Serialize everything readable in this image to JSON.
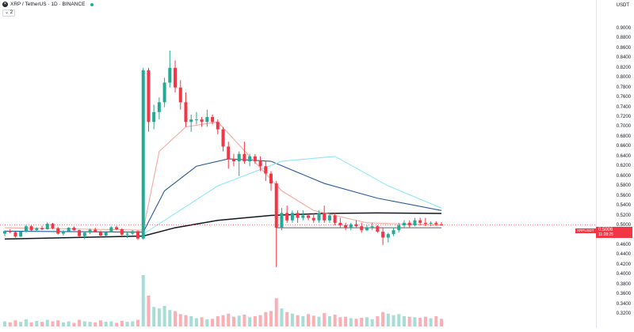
{
  "legend": {
    "symbol_icon": "xrp-logo-icon",
    "title": "XRP / TetherUS · 1D · BINANCE",
    "status_color": "#22ab94",
    "indicators_toggle": "⌄ 2"
  },
  "currency": "USDT",
  "price_axis": {
    "ticks": [
      "0.9000",
      "0.8800",
      "0.8600",
      "0.8400",
      "0.8200",
      "0.8000",
      "0.7800",
      "0.7600",
      "0.7400",
      "0.7200",
      "0.7000",
      "0.6800",
      "0.6600",
      "0.6400",
      "0.6200",
      "0.6000",
      "0.5800",
      "0.5600",
      "0.5400",
      "0.5200",
      "0.5000",
      "0.4800",
      "0.4600",
      "0.4400",
      "0.4200",
      "0.4000",
      "0.3800",
      "0.3600",
      "0.3400",
      "0.3200"
    ]
  },
  "last_price": {
    "symbol": "XRPUSDT",
    "value": "0.5006",
    "countdown": "11:28:25",
    "color": "#f23645"
  },
  "colors": {
    "up": "#22ab94",
    "down": "#f23645",
    "ema_fast": "#f7a8a0",
    "ema_mid": "#2a5a9e",
    "sma_slow": "#8ee7f7",
    "sma_long": "#131722"
  },
  "chart_data": {
    "type": "candlestick",
    "symbol": "XRP / TetherUS",
    "interval": "1D",
    "exchange": "BINANCE",
    "ylim": [
      0.31,
      0.91
    ],
    "candles": [
      [
        0.483,
        0.49,
        0.478,
        0.488
      ],
      [
        0.488,
        0.492,
        0.484,
        0.486
      ],
      [
        0.486,
        0.488,
        0.475,
        0.477
      ],
      [
        0.477,
        0.489,
        0.476,
        0.487
      ],
      [
        0.487,
        0.501,
        0.485,
        0.498
      ],
      [
        0.498,
        0.5,
        0.488,
        0.49
      ],
      [
        0.49,
        0.496,
        0.487,
        0.494
      ],
      [
        0.494,
        0.499,
        0.49,
        0.492
      ],
      [
        0.492,
        0.506,
        0.491,
        0.503
      ],
      [
        0.503,
        0.505,
        0.492,
        0.494
      ],
      [
        0.494,
        0.497,
        0.481,
        0.483
      ],
      [
        0.483,
        0.49,
        0.479,
        0.488
      ],
      [
        0.488,
        0.496,
        0.487,
        0.495
      ],
      [
        0.495,
        0.498,
        0.489,
        0.49
      ],
      [
        0.49,
        0.491,
        0.476,
        0.478
      ],
      [
        0.478,
        0.487,
        0.472,
        0.485
      ],
      [
        0.485,
        0.493,
        0.482,
        0.491
      ],
      [
        0.491,
        0.495,
        0.486,
        0.487
      ],
      [
        0.487,
        0.489,
        0.476,
        0.479
      ],
      [
        0.479,
        0.488,
        0.477,
        0.486
      ],
      [
        0.486,
        0.498,
        0.485,
        0.496
      ],
      [
        0.496,
        0.499,
        0.49,
        0.492
      ],
      [
        0.492,
        0.494,
        0.479,
        0.481
      ],
      [
        0.481,
        0.486,
        0.474,
        0.483
      ],
      [
        0.483,
        0.49,
        0.48,
        0.488
      ],
      [
        0.488,
        0.489,
        0.47,
        0.473
      ],
      [
        0.473,
        0.82,
        0.471,
        0.815
      ],
      [
        0.815,
        0.82,
        0.69,
        0.71
      ],
      [
        0.71,
        0.745,
        0.695,
        0.73
      ],
      [
        0.73,
        0.76,
        0.715,
        0.75
      ],
      [
        0.75,
        0.8,
        0.74,
        0.79
      ],
      [
        0.79,
        0.855,
        0.78,
        0.82
      ],
      [
        0.82,
        0.835,
        0.77,
        0.78
      ],
      [
        0.78,
        0.795,
        0.735,
        0.75
      ],
      [
        0.75,
        0.77,
        0.7,
        0.71
      ],
      [
        0.71,
        0.725,
        0.69,
        0.715
      ],
      [
        0.715,
        0.73,
        0.705,
        0.715
      ],
      [
        0.715,
        0.72,
        0.7,
        0.71
      ],
      [
        0.71,
        0.735,
        0.7,
        0.72
      ],
      [
        0.72,
        0.725,
        0.705,
        0.71
      ],
      [
        0.71,
        0.715,
        0.685,
        0.695
      ],
      [
        0.695,
        0.7,
        0.65,
        0.66
      ],
      [
        0.66,
        0.67,
        0.615,
        0.635
      ],
      [
        0.635,
        0.645,
        0.62,
        0.63
      ],
      [
        0.63,
        0.65,
        0.6,
        0.645
      ],
      [
        0.645,
        0.67,
        0.625,
        0.63
      ],
      [
        0.63,
        0.645,
        0.62,
        0.64
      ],
      [
        0.64,
        0.645,
        0.625,
        0.63
      ],
      [
        0.63,
        0.64,
        0.61,
        0.62
      ],
      [
        0.62,
        0.63,
        0.59,
        0.605
      ],
      [
        0.605,
        0.61,
        0.57,
        0.585
      ],
      [
        0.585,
        0.59,
        0.415,
        0.495
      ],
      [
        0.495,
        0.535,
        0.49,
        0.525
      ],
      [
        0.525,
        0.54,
        0.505,
        0.51
      ],
      [
        0.51,
        0.53,
        0.505,
        0.525
      ],
      [
        0.525,
        0.53,
        0.505,
        0.515
      ],
      [
        0.515,
        0.53,
        0.51,
        0.52
      ],
      [
        0.52,
        0.525,
        0.51,
        0.515
      ],
      [
        0.515,
        0.525,
        0.505,
        0.51
      ],
      [
        0.51,
        0.53,
        0.505,
        0.525
      ],
      [
        0.525,
        0.54,
        0.505,
        0.51
      ],
      [
        0.51,
        0.525,
        0.505,
        0.52
      ],
      [
        0.52,
        0.525,
        0.5,
        0.505
      ],
      [
        0.505,
        0.515,
        0.495,
        0.5
      ],
      [
        0.5,
        0.505,
        0.49,
        0.495
      ],
      [
        0.495,
        0.505,
        0.49,
        0.502
      ],
      [
        0.502,
        0.51,
        0.495,
        0.498
      ],
      [
        0.498,
        0.505,
        0.485,
        0.49
      ],
      [
        0.49,
        0.5,
        0.488,
        0.496
      ],
      [
        0.496,
        0.505,
        0.49,
        0.498
      ],
      [
        0.498,
        0.5,
        0.485,
        0.487
      ],
      [
        0.487,
        0.495,
        0.46,
        0.475
      ],
      [
        0.475,
        0.485,
        0.465,
        0.482
      ],
      [
        0.482,
        0.495,
        0.478,
        0.49
      ],
      [
        0.49,
        0.505,
        0.485,
        0.5
      ],
      [
        0.5,
        0.51,
        0.495,
        0.505
      ],
      [
        0.505,
        0.51,
        0.495,
        0.5
      ],
      [
        0.5,
        0.515,
        0.498,
        0.51
      ],
      [
        0.51,
        0.515,
        0.5,
        0.505
      ],
      [
        0.505,
        0.515,
        0.498,
        0.503
      ],
      [
        0.503,
        0.508,
        0.498,
        0.505
      ],
      [
        0.505,
        0.508,
        0.499,
        0.502
      ],
      [
        0.502,
        0.506,
        0.499,
        0.5006
      ]
    ],
    "volume_relative": [
      0.1,
      0.08,
      0.12,
      0.09,
      0.14,
      0.08,
      0.11,
      0.09,
      0.13,
      0.1,
      0.12,
      0.08,
      0.1,
      0.07,
      0.13,
      0.1,
      0.09,
      0.08,
      0.12,
      0.09,
      0.1,
      0.07,
      0.11,
      0.09,
      0.1,
      0.13,
      1.0,
      0.6,
      0.38,
      0.35,
      0.4,
      0.32,
      0.3,
      0.24,
      0.22,
      0.2,
      0.16,
      0.18,
      0.14,
      0.15,
      0.2,
      0.22,
      0.25,
      0.19,
      0.21,
      0.23,
      0.18,
      0.2,
      0.22,
      0.28,
      0.3,
      0.55,
      0.35,
      0.28,
      0.25,
      0.22,
      0.2,
      0.24,
      0.21,
      0.19,
      0.26,
      0.2,
      0.23,
      0.18,
      0.19,
      0.16,
      0.15,
      0.17,
      0.18,
      0.14,
      0.2,
      0.28,
      0.25,
      0.22,
      0.24,
      0.2,
      0.19,
      0.18,
      0.17,
      0.19,
      0.16,
      0.2,
      0.15
    ],
    "lines": [
      {
        "key": "sma_long",
        "points": [
          [
            0,
            0.472
          ],
          [
            26,
            0.478
          ],
          [
            32,
            0.495
          ],
          [
            40,
            0.51
          ],
          [
            50,
            0.52
          ],
          [
            60,
            0.524
          ],
          [
            70,
            0.525
          ],
          [
            82,
            0.524
          ]
        ]
      },
      {
        "key": "ema_mid",
        "points": [
          [
            0,
            0.488
          ],
          [
            26,
            0.486
          ],
          [
            30,
            0.57
          ],
          [
            36,
            0.62
          ],
          [
            42,
            0.635
          ],
          [
            50,
            0.63
          ],
          [
            60,
            0.585
          ],
          [
            70,
            0.555
          ],
          [
            82,
            0.53
          ]
        ]
      },
      {
        "key": "sma_slow",
        "points": [
          [
            26,
            0.482
          ],
          [
            40,
            0.58
          ],
          [
            52,
            0.63
          ],
          [
            62,
            0.64
          ],
          [
            72,
            0.58
          ],
          [
            82,
            0.535
          ]
        ]
      },
      {
        "key": "ema_fast",
        "points": [
          [
            0,
            0.495
          ],
          [
            26,
            0.49
          ],
          [
            29,
            0.65
          ],
          [
            34,
            0.7
          ],
          [
            40,
            0.71
          ],
          [
            46,
            0.64
          ],
          [
            52,
            0.57
          ],
          [
            58,
            0.53
          ],
          [
            68,
            0.505
          ],
          [
            82,
            0.5
          ]
        ]
      }
    ],
    "horizontal_line": 0.495
  }
}
